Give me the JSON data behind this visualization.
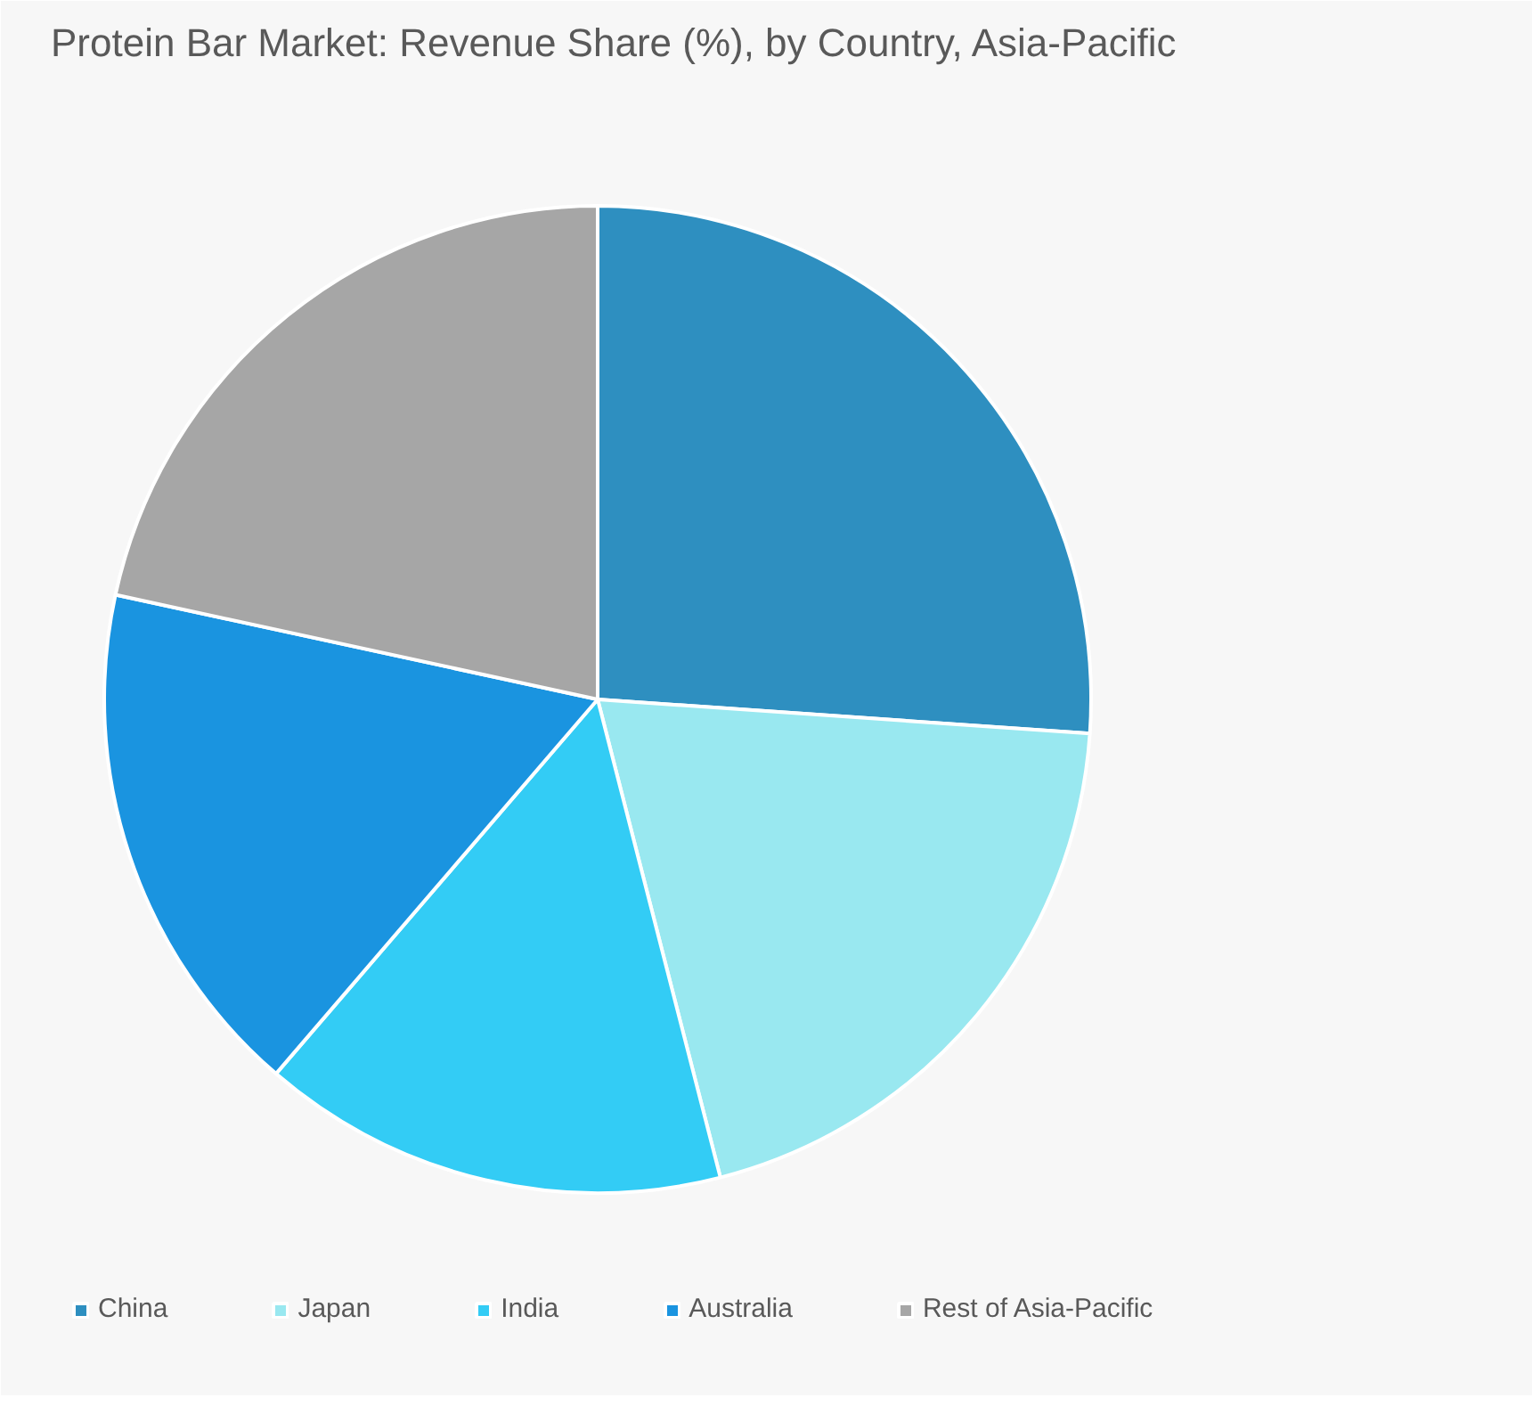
{
  "chart_data": {
    "type": "pie",
    "title": "Protein Bar Market: Revenue Share (%), by Country, Asia-Pacific",
    "categories": [
      "China",
      "Japan",
      "India",
      "Australia",
      "Rest of Asia-Pacific"
    ],
    "values": [
      26.1,
      19.9,
      15.3,
      17.1,
      21.6
    ],
    "colors": [
      "#2e8fc0",
      "#99e8f0",
      "#33ccf5",
      "#1a94e0",
      "#a6a6a6"
    ],
    "legend": "bottom"
  }
}
